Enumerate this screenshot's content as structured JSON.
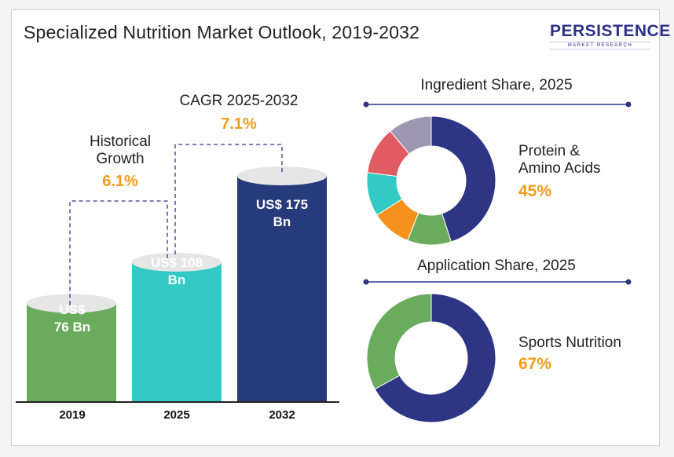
{
  "header": {
    "title": "Specialized Nutrition Market Outlook, 2019-2032",
    "logo_name": "PERSISTENCE",
    "logo_sub": "MARKET RESEARCH"
  },
  "annotations": {
    "historical_label_1": "Historical",
    "historical_label_2": "Growth",
    "historical_value": "6.1%",
    "cagr_label": "CAGR 2025-2032",
    "cagr_value": "7.1%"
  },
  "colors": {
    "bar_2019": "#6aac5e",
    "bar_2025": "#33c9c4",
    "bar_2032": "#263a7c",
    "accent": "#f39c1a",
    "donut_main": "#2d3584"
  },
  "chart_data": [
    {
      "type": "bar",
      "title": "",
      "categories": [
        "2019",
        "2025",
        "2032"
      ],
      "values": [
        76,
        108,
        175
      ],
      "value_labels": [
        [
          "US$",
          "76 Bn"
        ],
        [
          "US$ 108",
          "Bn"
        ],
        [
          "US$ 175",
          "Bn"
        ]
      ],
      "unit": "US$ Bn",
      "xlabel": "",
      "ylabel": ""
    },
    {
      "type": "pie",
      "title": "Ingredient Share, 2025",
      "slices": [
        {
          "name": "Protein & Amino Acids",
          "value": 45,
          "color": "#2d3584"
        },
        {
          "name": "",
          "value": 11,
          "color": "#6aac5e"
        },
        {
          "name": "",
          "value": 10,
          "color": "#f5921e"
        },
        {
          "name": "",
          "value": 11,
          "color": "#33c9c4"
        },
        {
          "name": "",
          "value": 12,
          "color": "#e05c62"
        },
        {
          "name": "",
          "value": 11,
          "color": "#9e97b2"
        }
      ],
      "highlight_label_1": "Protein &",
      "highlight_label_2": "Amino Acids",
      "highlight_value": "45%"
    },
    {
      "type": "pie",
      "title": "Application Share, 2025",
      "slices": [
        {
          "name": "Sports Nutrition",
          "value": 67,
          "color": "#2d3584"
        },
        {
          "name": "",
          "value": 33,
          "color": "#6aac5e"
        }
      ],
      "highlight_label": "Sports Nutrition",
      "highlight_value": "67%"
    }
  ]
}
